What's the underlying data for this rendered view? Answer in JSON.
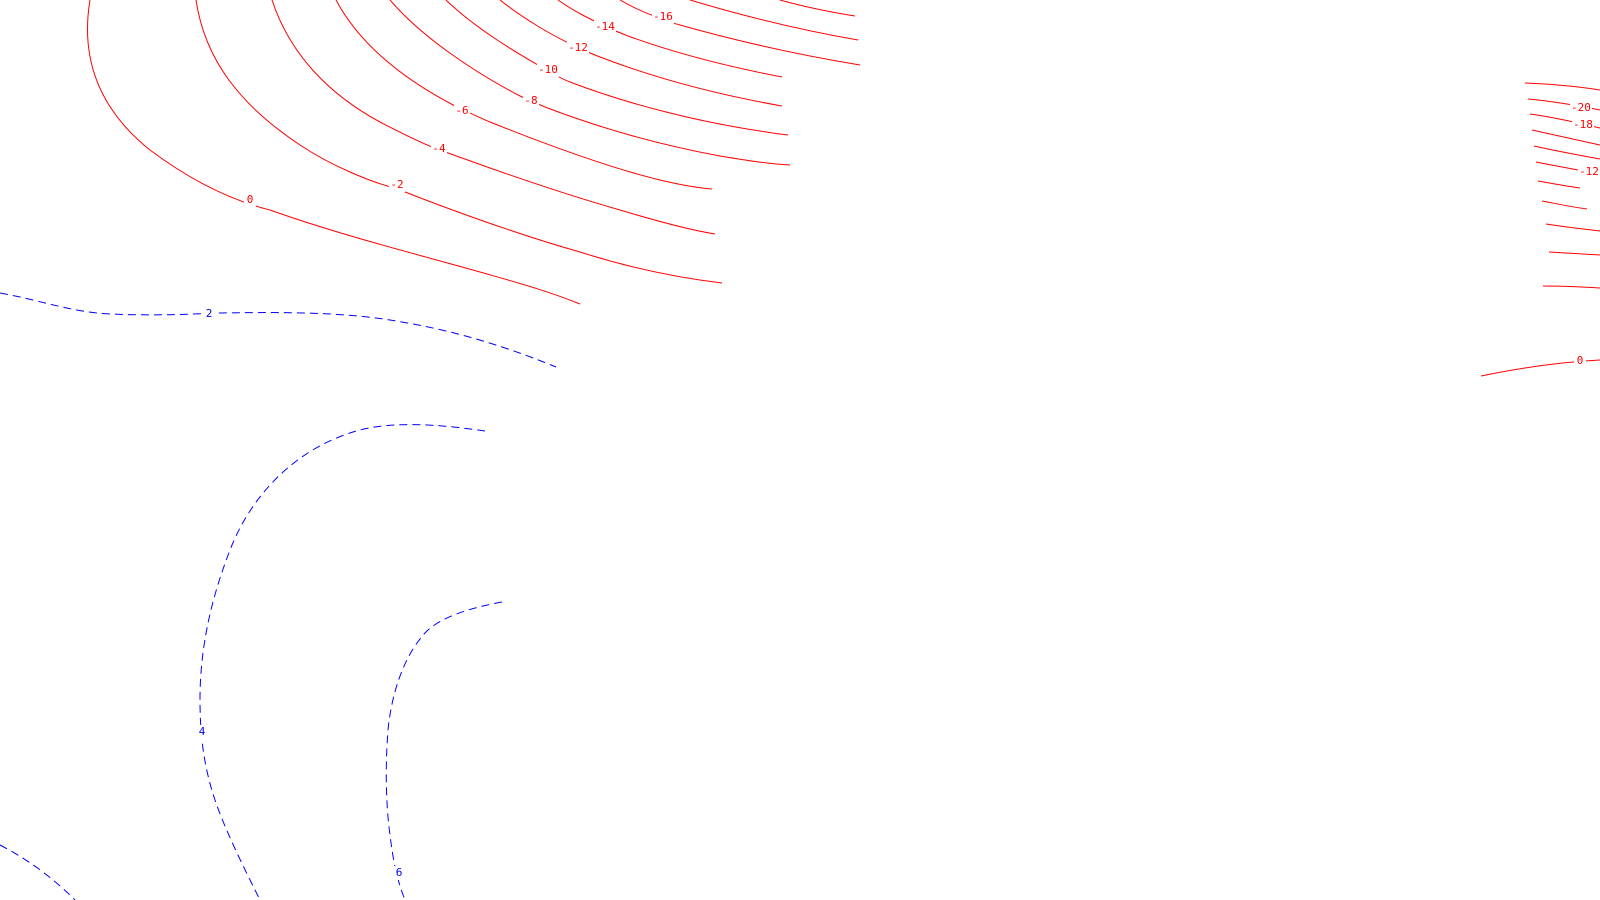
{
  "map": {
    "colors": {
      "background": "#ffffff",
      "negative_contour": "#ff0000",
      "positive_contour": "#0000ff"
    },
    "labels": {
      "n16": "-16",
      "n14": "-14",
      "n12": "-12",
      "n10": "-10",
      "n8": "-8",
      "n6": "-6",
      "n4": "-4",
      "n2": "-2",
      "z0": "0",
      "p2": "2",
      "p4": "4",
      "p6": "6",
      "r_n20": "-20",
      "r_n18": "-18",
      "r_n12": "-12",
      "r_z0": "0"
    }
  }
}
